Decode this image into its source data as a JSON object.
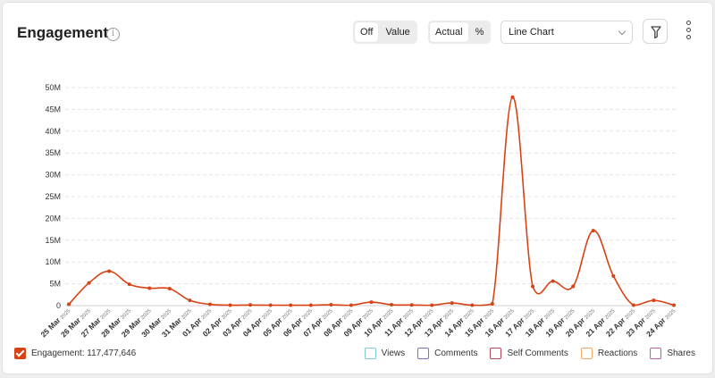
{
  "header": {
    "title": "Engagement",
    "info_icon": "i",
    "labels_toggle": {
      "off": "Off",
      "value": "Value",
      "selected": "Off"
    },
    "mode_toggle": {
      "actual": "Actual",
      "percent": "%",
      "selected": "Actual"
    },
    "chart_type_select": {
      "value": "Line Chart"
    },
    "icons": {
      "filter": "filter-icon",
      "more": "more-vertical-icon"
    }
  },
  "legend": {
    "main": {
      "label": "Engagement: 117,477,646",
      "checked": true,
      "color": "#d84315"
    },
    "others": [
      {
        "label": "Views",
        "color": "#80cbd6"
      },
      {
        "label": "Comments",
        "color": "#7e75b8"
      },
      {
        "label": "Self Comments",
        "color": "#b3485d"
      },
      {
        "label": "Reactions",
        "color": "#f0a868"
      },
      {
        "label": "Shares",
        "color": "#c45aa8"
      }
    ]
  },
  "chart_data": {
    "type": "line",
    "title": "Engagement",
    "xlabel": "",
    "ylabel": "",
    "ylim": [
      0,
      50000000
    ],
    "yticks": [
      0,
      5000000,
      10000000,
      15000000,
      20000000,
      25000000,
      30000000,
      35000000,
      40000000,
      45000000,
      50000000
    ],
    "ytick_labels": [
      "0",
      "5M",
      "10M",
      "15M",
      "20M",
      "25M",
      "30M",
      "35M",
      "40M",
      "45M",
      "50M"
    ],
    "grid": true,
    "legend_position": "bottom",
    "categories": [
      {
        "day": "25 Mar",
        "year": "2025"
      },
      {
        "day": "26 Mar",
        "year": "2025"
      },
      {
        "day": "27 Mar",
        "year": "2025"
      },
      {
        "day": "28 Mar",
        "year": "2025"
      },
      {
        "day": "29 Mar",
        "year": "2025"
      },
      {
        "day": "30 Mar",
        "year": "2025"
      },
      {
        "day": "31 Mar",
        "year": "2025"
      },
      {
        "day": "01 Apr",
        "year": "2025"
      },
      {
        "day": "02 Apr",
        "year": "2025"
      },
      {
        "day": "03 Apr",
        "year": "2025"
      },
      {
        "day": "04 Apr",
        "year": "2025"
      },
      {
        "day": "05 Apr",
        "year": "2025"
      },
      {
        "day": "06 Apr",
        "year": "2025"
      },
      {
        "day": "07 Apr",
        "year": "2025"
      },
      {
        "day": "08 Apr",
        "year": "2025"
      },
      {
        "day": "09 Apr",
        "year": "2025"
      },
      {
        "day": "10 Apr",
        "year": "2025"
      },
      {
        "day": "11 Apr",
        "year": "2025"
      },
      {
        "day": "12 Apr",
        "year": "2025"
      },
      {
        "day": "13 Apr",
        "year": "2025"
      },
      {
        "day": "14 Apr",
        "year": "2025"
      },
      {
        "day": "15 Apr",
        "year": "2025"
      },
      {
        "day": "16 Apr",
        "year": "2025"
      },
      {
        "day": "17 Apr",
        "year": "2025"
      },
      {
        "day": "18 Apr",
        "year": "2025"
      },
      {
        "day": "19 Apr",
        "year": "2025"
      },
      {
        "day": "20 Apr",
        "year": "2025"
      },
      {
        "day": "21 Apr",
        "year": "2025"
      },
      {
        "day": "22 Apr",
        "year": "2025"
      },
      {
        "day": "23 Apr",
        "year": "2025"
      },
      {
        "day": "24 Apr",
        "year": "2025"
      }
    ],
    "series": [
      {
        "color": "#d84315",
        "values": [
          300000,
          5200000,
          7900000,
          4900000,
          4000000,
          3900000,
          1200000,
          300000,
          100000,
          150000,
          100000,
          100000,
          100000,
          200000,
          100000,
          800000,
          200000,
          150000,
          100000,
          600000,
          100000,
          400000,
          47800000,
          4400000,
          5600000,
          4400000,
          17200000,
          6800000,
          100000,
          1200000,
          100000
        ]
      }
    ]
  }
}
